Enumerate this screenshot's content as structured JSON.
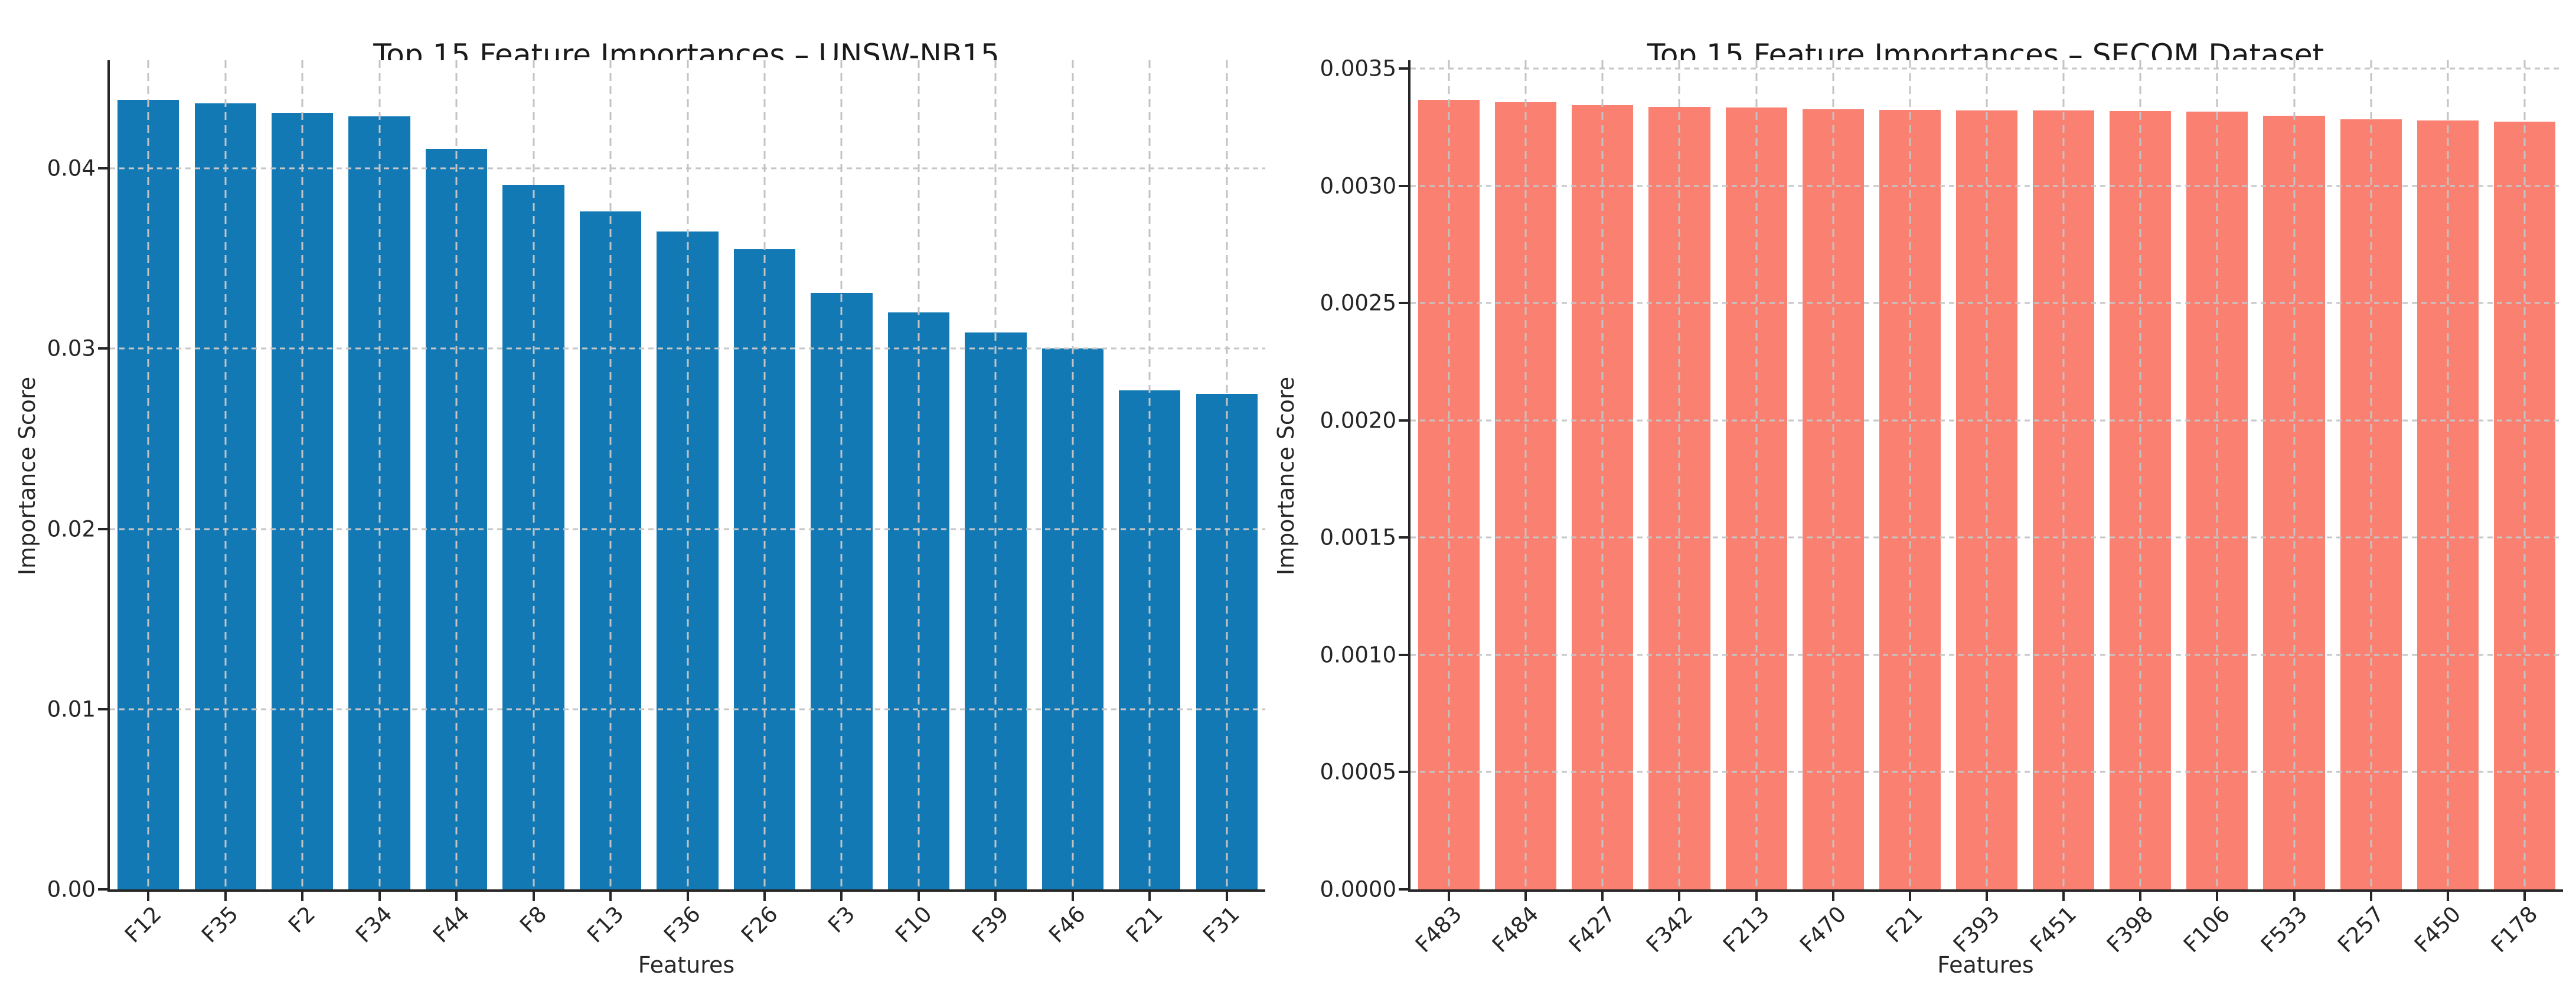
{
  "chart_data": [
    {
      "type": "bar",
      "title": "Top 15 Feature Importances – UNSW-NB15",
      "xlabel": "Features",
      "ylabel": "Importance Score",
      "categories": [
        "F12",
        "F35",
        "F2",
        "F34",
        "F44",
        "F8",
        "F13",
        "F36",
        "F26",
        "F3",
        "F10",
        "F39",
        "F46",
        "F21",
        "F31"
      ],
      "values": [
        0.0438,
        0.0436,
        0.0431,
        0.0429,
        0.0411,
        0.0391,
        0.0376,
        0.0365,
        0.0355,
        0.0331,
        0.032,
        0.0309,
        0.03,
        0.0277,
        0.0275
      ],
      "bar_color": "#1379b5",
      "ylim": [
        0,
        0.046
      ],
      "yticks": [
        0,
        0.01,
        0.02,
        0.03,
        0.04
      ],
      "ytick_labels": [
        "0.00",
        "0.01",
        "0.02",
        "0.03",
        "0.04"
      ],
      "grid": true,
      "grid_style": "dashed",
      "bar_width_fraction": 0.8
    },
    {
      "type": "bar",
      "title": "Top 15 Feature Importances – SECOM Dataset",
      "xlabel": "Features",
      "ylabel": "Importance Score",
      "categories": [
        "F483",
        "F484",
        "F427",
        "F342",
        "F213",
        "F470",
        "F21",
        "F393",
        "F451",
        "F398",
        "F106",
        "F533",
        "F257",
        "F450",
        "F178"
      ],
      "values": [
        0.003368,
        0.003357,
        0.003344,
        0.003336,
        0.003334,
        0.003327,
        0.003325,
        0.003323,
        0.003322,
        0.003319,
        0.003318,
        0.003299,
        0.003283,
        0.00328,
        0.003273
      ],
      "bar_color": "#fa8072",
      "ylim": [
        0,
        0.003536
      ],
      "yticks": [
        0,
        0.0005,
        0.001,
        0.0015,
        0.002,
        0.0025,
        0.003,
        0.0035
      ],
      "ytick_labels": [
        "0.0000",
        "0.0005",
        "0.0010",
        "0.0015",
        "0.0020",
        "0.0025",
        "0.0030",
        "0.0035"
      ],
      "grid": true,
      "grid_style": "dashed",
      "bar_width_fraction": 0.8
    }
  ]
}
